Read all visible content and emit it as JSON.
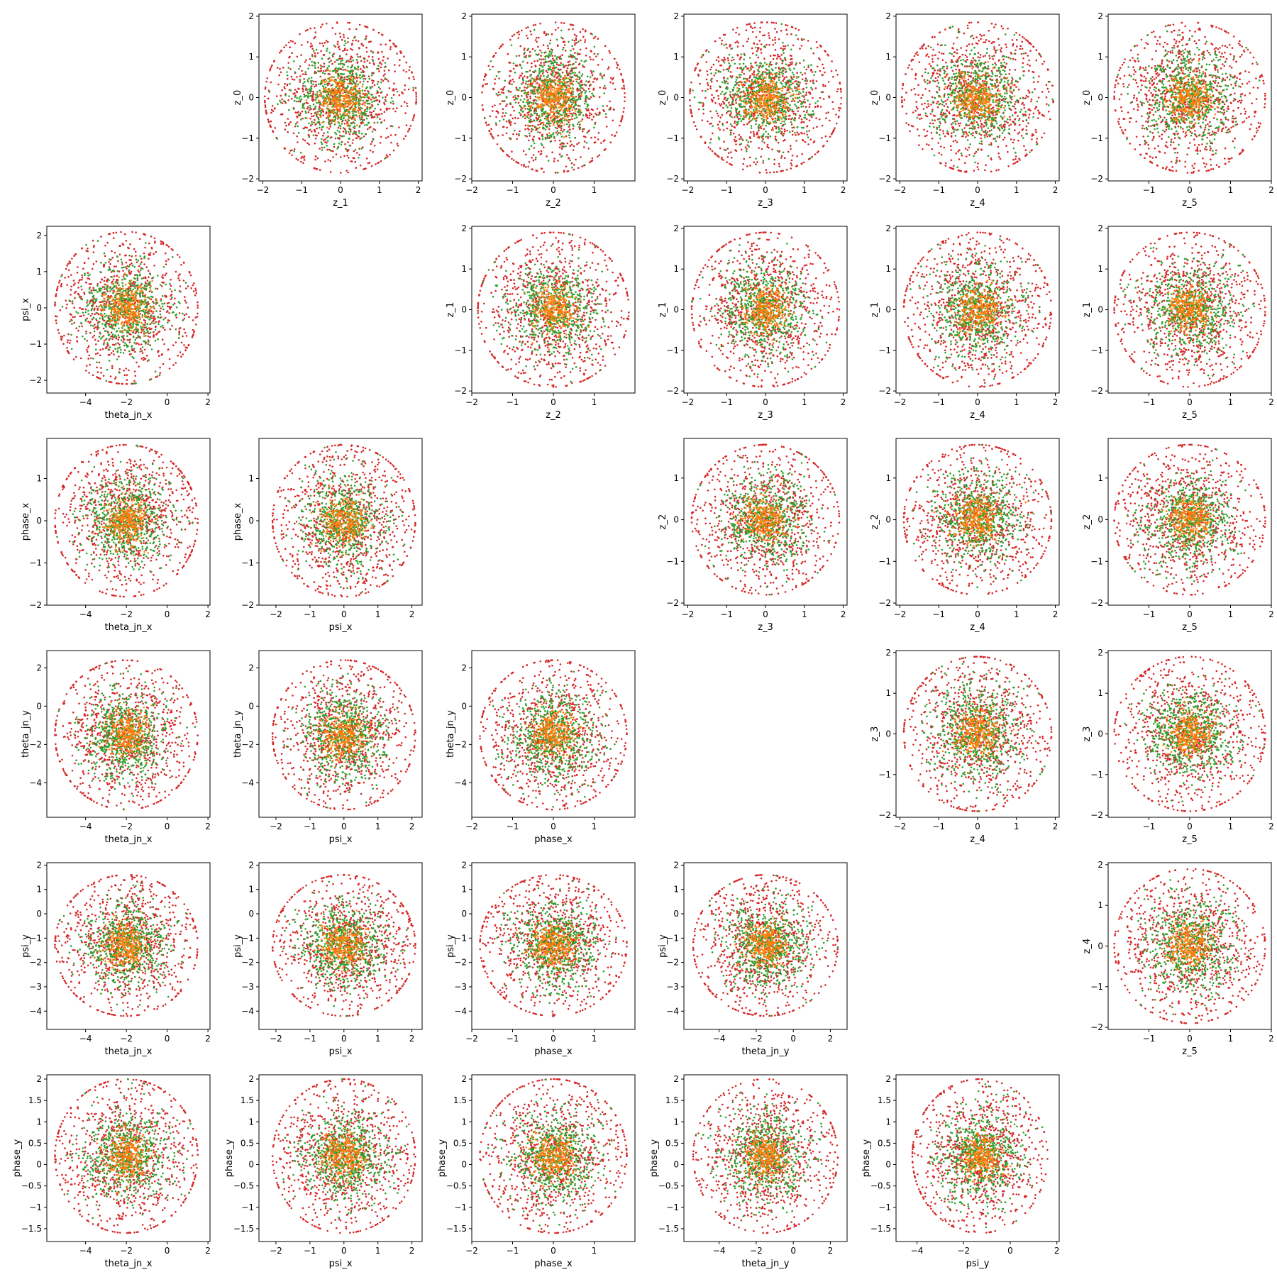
{
  "figure": {
    "type": "pairwise scatter matrix",
    "colors": {
      "outer": "#d62728",
      "middle": "#2ca02c",
      "inner": "#ff7f0e"
    },
    "points_per_series": {
      "outer": 900,
      "middle": 600,
      "inner": 280
    },
    "series_spread": {
      "outer": 0.5,
      "middle": 0.3,
      "inner": 0.15
    }
  },
  "chart_data": [
    {
      "type": "scatter",
      "grid": false,
      "row": 0,
      "col": 1,
      "xlabel": "z_1",
      "ylabel": "z_0",
      "xcenter": 0,
      "ycenter": 0,
      "xspan": 1.95,
      "yspan": 1.85,
      "xlim": [
        -2.1,
        2.1
      ],
      "ylim": [
        -2.05,
        2.05
      ],
      "xticks": [
        -2,
        -1,
        0,
        1,
        2
      ],
      "yticks": [
        -2,
        -1,
        0,
        1,
        2
      ]
    },
    {
      "type": "scatter",
      "grid": false,
      "row": 0,
      "col": 2,
      "xlabel": "z_2",
      "ylabel": "z_0",
      "xcenter": 0,
      "ycenter": 0,
      "xspan": 1.75,
      "yspan": 1.85,
      "xlim": [
        -2.0,
        2.0
      ],
      "ylim": [
        -2.05,
        2.05
      ],
      "xticks": [
        -2,
        -1,
        0,
        1
      ],
      "yticks": [
        -2,
        -1,
        0,
        1,
        2
      ]
    },
    {
      "type": "scatter",
      "grid": false,
      "row": 0,
      "col": 3,
      "xlabel": "z_3",
      "ylabel": "z_0",
      "xcenter": 0,
      "ycenter": 0,
      "xspan": 1.95,
      "yspan": 1.85,
      "xlim": [
        -2.1,
        2.1
      ],
      "ylim": [
        -2.05,
        2.05
      ],
      "xticks": [
        -2,
        -1,
        0,
        1,
        2
      ],
      "yticks": [
        -2,
        -1,
        0,
        1,
        2
      ]
    },
    {
      "type": "scatter",
      "grid": false,
      "row": 0,
      "col": 4,
      "xlabel": "z_4",
      "ylabel": "z_0",
      "xcenter": 0,
      "ycenter": 0,
      "xspan": 1.95,
      "yspan": 1.85,
      "xlim": [
        -2.1,
        2.1
      ],
      "ylim": [
        -2.05,
        2.05
      ],
      "xticks": [
        -2,
        -1,
        0,
        1,
        2
      ],
      "yticks": [
        -2,
        -1,
        0,
        1,
        2
      ]
    },
    {
      "type": "scatter",
      "grid": false,
      "row": 0,
      "col": 5,
      "xlabel": "z_5",
      "ylabel": "z_0",
      "xcenter": 0,
      "ycenter": 0,
      "xspan": 1.85,
      "yspan": 1.85,
      "xlim": [
        -2.0,
        2.0
      ],
      "ylim": [
        -2.05,
        2.05
      ],
      "xticks": [
        -1,
        0,
        1,
        2
      ],
      "yticks": [
        -2,
        -1,
        0,
        1,
        2
      ]
    },
    {
      "type": "scatter",
      "grid": false,
      "row": 1,
      "col": 0,
      "xlabel": "theta_jn_x",
      "ylabel": "psi_x",
      "xcenter": -2,
      "ycenter": 0,
      "xspan": 3.5,
      "yspan": 2.1,
      "xlim": [
        -5.9,
        2.1
      ],
      "ylim": [
        -2.35,
        2.25
      ],
      "xticks": [
        -4,
        -2,
        0,
        2
      ],
      "yticks": [
        -2,
        -1,
        0,
        1,
        2
      ]
    },
    {
      "type": "scatter",
      "grid": false,
      "row": 1,
      "col": 2,
      "xlabel": "z_2",
      "ylabel": "z_1",
      "xcenter": 0,
      "ycenter": 0,
      "xspan": 1.85,
      "yspan": 1.9,
      "xlim": [
        -2.0,
        2.0
      ],
      "ylim": [
        -2.05,
        2.05
      ],
      "xticks": [
        -2,
        -1,
        0,
        1
      ],
      "yticks": [
        -2,
        -1,
        0,
        1,
        2
      ]
    },
    {
      "type": "scatter",
      "grid": false,
      "row": 1,
      "col": 3,
      "xlabel": "z_3",
      "ylabel": "z_1",
      "xcenter": 0,
      "ycenter": 0,
      "xspan": 1.9,
      "yspan": 1.9,
      "xlim": [
        -2.1,
        2.1
      ],
      "ylim": [
        -2.05,
        2.05
      ],
      "xticks": [
        -2,
        -1,
        0,
        1,
        2
      ],
      "yticks": [
        -2,
        -1,
        0,
        1,
        2
      ]
    },
    {
      "type": "scatter",
      "grid": false,
      "row": 1,
      "col": 4,
      "xlabel": "z_4",
      "ylabel": "z_1",
      "xcenter": 0,
      "ycenter": 0,
      "xspan": 1.9,
      "yspan": 1.9,
      "xlim": [
        -2.1,
        2.1
      ],
      "ylim": [
        -2.05,
        2.05
      ],
      "xticks": [
        -2,
        -1,
        0,
        1,
        2
      ],
      "yticks": [
        -2,
        -1,
        0,
        1,
        2
      ]
    },
    {
      "type": "scatter",
      "grid": false,
      "row": 1,
      "col": 5,
      "xlabel": "z_5",
      "ylabel": "z_1",
      "xcenter": 0,
      "ycenter": 0,
      "xspan": 1.85,
      "yspan": 1.9,
      "xlim": [
        -2.0,
        2.0
      ],
      "ylim": [
        -2.05,
        2.05
      ],
      "xticks": [
        -1,
        0,
        1,
        2
      ],
      "yticks": [
        -2,
        -1,
        0,
        1,
        2
      ]
    },
    {
      "type": "scatter",
      "grid": false,
      "row": 2,
      "col": 0,
      "xlabel": "theta_jn_x",
      "ylabel": "phase_x",
      "xcenter": -2,
      "ycenter": 0,
      "xspan": 3.5,
      "yspan": 1.8,
      "xlim": [
        -5.9,
        2.1
      ],
      "ylim": [
        -2.0,
        1.95
      ],
      "xticks": [
        -4,
        -2,
        0,
        2
      ],
      "yticks": [
        -2,
        -1,
        0,
        1
      ]
    },
    {
      "type": "scatter",
      "grid": false,
      "row": 2,
      "col": 1,
      "xlabel": "psi_x",
      "ylabel": "phase_x",
      "xcenter": 0,
      "ycenter": 0,
      "xspan": 2.1,
      "yspan": 1.8,
      "xlim": [
        -2.5,
        2.3
      ],
      "ylim": [
        -2.0,
        1.95
      ],
      "xticks": [
        -2,
        -1,
        0,
        1,
        2
      ],
      "yticks": [
        -2,
        -1,
        0,
        1
      ]
    },
    {
      "type": "scatter",
      "grid": false,
      "row": 2,
      "col": 3,
      "xlabel": "z_3",
      "ylabel": "z_2",
      "xcenter": 0,
      "ycenter": 0,
      "xspan": 1.9,
      "yspan": 1.8,
      "xlim": [
        -2.1,
        2.1
      ],
      "ylim": [
        -2.05,
        1.95
      ],
      "xticks": [
        -2,
        -1,
        0,
        1,
        2
      ],
      "yticks": [
        -2,
        -1,
        0,
        1
      ]
    },
    {
      "type": "scatter",
      "grid": false,
      "row": 2,
      "col": 4,
      "xlabel": "z_4",
      "ylabel": "z_2",
      "xcenter": 0,
      "ycenter": 0,
      "xspan": 1.9,
      "yspan": 1.8,
      "xlim": [
        -2.1,
        2.1
      ],
      "ylim": [
        -2.05,
        1.95
      ],
      "xticks": [
        -2,
        -1,
        0,
        1,
        2
      ],
      "yticks": [
        -2,
        -1,
        0,
        1
      ]
    },
    {
      "type": "scatter",
      "grid": false,
      "row": 2,
      "col": 5,
      "xlabel": "z_5",
      "ylabel": "z_2",
      "xcenter": 0,
      "ycenter": 0,
      "xspan": 1.85,
      "yspan": 1.8,
      "xlim": [
        -2.0,
        2.0
      ],
      "ylim": [
        -2.05,
        1.95
      ],
      "xticks": [
        -1,
        0,
        1,
        2
      ],
      "yticks": [
        -2,
        -1,
        0,
        1
      ]
    },
    {
      "type": "scatter",
      "grid": false,
      "row": 3,
      "col": 0,
      "xlabel": "theta_jn_x",
      "ylabel": "theta_jn_y",
      "xcenter": -2,
      "ycenter": -1.5,
      "xspan": 3.5,
      "yspan": 3.9,
      "xlim": [
        -5.9,
        2.1
      ],
      "ylim": [
        -5.8,
        2.9
      ],
      "xticks": [
        -4,
        -2,
        0,
        2
      ],
      "yticks": [
        -4,
        -2,
        0,
        2
      ]
    },
    {
      "type": "scatter",
      "grid": false,
      "row": 3,
      "col": 1,
      "xlabel": "psi_x",
      "ylabel": "theta_jn_y",
      "xcenter": 0,
      "ycenter": -1.5,
      "xspan": 2.1,
      "yspan": 3.9,
      "xlim": [
        -2.5,
        2.3
      ],
      "ylim": [
        -5.8,
        2.9
      ],
      "xticks": [
        -2,
        -1,
        0,
        1,
        2
      ],
      "yticks": [
        -4,
        -2,
        0,
        2
      ]
    },
    {
      "type": "scatter",
      "grid": false,
      "row": 3,
      "col": 2,
      "xlabel": "phase_x",
      "ylabel": "theta_jn_y",
      "xcenter": 0,
      "ycenter": -1.5,
      "xspan": 1.8,
      "yspan": 3.9,
      "xlim": [
        -2.0,
        2.0
      ],
      "ylim": [
        -5.8,
        2.9
      ],
      "xticks": [
        -2,
        -1,
        0,
        1
      ],
      "yticks": [
        -4,
        -2,
        0,
        2
      ]
    },
    {
      "type": "scatter",
      "grid": false,
      "row": 3,
      "col": 4,
      "xlabel": "z_4",
      "ylabel": "z_3",
      "xcenter": 0,
      "ycenter": 0,
      "xspan": 1.9,
      "yspan": 1.9,
      "xlim": [
        -2.1,
        2.1
      ],
      "ylim": [
        -2.05,
        2.05
      ],
      "xticks": [
        -2,
        -1,
        0,
        1,
        2
      ],
      "yticks": [
        -2,
        -1,
        0,
        1,
        2
      ]
    },
    {
      "type": "scatter",
      "grid": false,
      "row": 3,
      "col": 5,
      "xlabel": "z_5",
      "ylabel": "z_3",
      "xcenter": 0,
      "ycenter": 0,
      "xspan": 1.85,
      "yspan": 1.9,
      "xlim": [
        -2.0,
        2.0
      ],
      "ylim": [
        -2.05,
        2.05
      ],
      "xticks": [
        -1,
        0,
        1,
        2
      ],
      "yticks": [
        -2,
        -1,
        0,
        1,
        2
      ]
    },
    {
      "type": "scatter",
      "grid": false,
      "row": 4,
      "col": 0,
      "xlabel": "theta_jn_x",
      "ylabel": "psi_y",
      "xcenter": -2,
      "ycenter": -1.3,
      "xspan": 3.5,
      "yspan": 2.9,
      "xlim": [
        -5.9,
        2.1
      ],
      "ylim": [
        -4.75,
        2.1
      ],
      "xticks": [
        -4,
        -2,
        0,
        2
      ],
      "yticks": [
        -4,
        -3,
        -2,
        -1,
        0,
        1,
        2
      ]
    },
    {
      "type": "scatter",
      "grid": false,
      "row": 4,
      "col": 1,
      "xlabel": "psi_x",
      "ylabel": "psi_y",
      "xcenter": 0,
      "ycenter": -1.3,
      "xspan": 2.1,
      "yspan": 2.9,
      "xlim": [
        -2.5,
        2.3
      ],
      "ylim": [
        -4.75,
        2.1
      ],
      "xticks": [
        -2,
        -1,
        0,
        1,
        2
      ],
      "yticks": [
        -4,
        -3,
        -2,
        -1,
        0,
        1,
        2
      ]
    },
    {
      "type": "scatter",
      "grid": false,
      "row": 4,
      "col": 2,
      "xlabel": "phase_x",
      "ylabel": "psi_y",
      "xcenter": 0,
      "ycenter": -1.3,
      "xspan": 1.8,
      "yspan": 2.9,
      "xlim": [
        -2.0,
        2.0
      ],
      "ylim": [
        -4.75,
        2.1
      ],
      "xticks": [
        -2,
        -1,
        0,
        1
      ],
      "yticks": [
        -4,
        -3,
        -2,
        -1,
        0,
        1,
        2
      ]
    },
    {
      "type": "scatter",
      "grid": false,
      "row": 4,
      "col": 3,
      "xlabel": "theta_jn_y",
      "ylabel": "psi_y",
      "xcenter": -1.5,
      "ycenter": -1.3,
      "xspan": 3.9,
      "yspan": 2.9,
      "xlim": [
        -5.9,
        2.9
      ],
      "ylim": [
        -4.75,
        2.1
      ],
      "xticks": [
        -4,
        -2,
        0,
        2
      ],
      "yticks": [
        -4,
        -3,
        -2,
        -1,
        0,
        1,
        2
      ]
    },
    {
      "type": "scatter",
      "grid": false,
      "row": 4,
      "col": 5,
      "xlabel": "z_5",
      "ylabel": "z_4",
      "xcenter": 0,
      "ycenter": 0,
      "xspan": 1.85,
      "yspan": 1.9,
      "xlim": [
        -2.0,
        2.0
      ],
      "ylim": [
        -2.05,
        2.05
      ],
      "xticks": [
        -1,
        0,
        1,
        2
      ],
      "yticks": [
        -2,
        -1,
        0,
        1,
        2
      ]
    },
    {
      "type": "scatter",
      "grid": false,
      "row": 5,
      "col": 0,
      "xlabel": "theta_jn_x",
      "ylabel": "phase_y",
      "xcenter": -2,
      "ycenter": 0.2,
      "xspan": 3.5,
      "yspan": 1.8,
      "xlim": [
        -5.9,
        2.1
      ],
      "ylim": [
        -1.8,
        2.1
      ],
      "xticks": [
        -4,
        -2,
        0,
        2
      ],
      "yticks": [
        -1.5,
        -1.0,
        -0.5,
        0.0,
        0.5,
        1.0,
        1.5,
        2.0
      ]
    },
    {
      "type": "scatter",
      "grid": false,
      "row": 5,
      "col": 1,
      "xlabel": "psi_x",
      "ylabel": "phase_y",
      "xcenter": 0,
      "ycenter": 0.2,
      "xspan": 2.1,
      "yspan": 1.8,
      "xlim": [
        -2.5,
        2.3
      ],
      "ylim": [
        -1.8,
        2.1
      ],
      "xticks": [
        -2,
        -1,
        0,
        1,
        2
      ],
      "yticks": [
        -1.5,
        -1.0,
        -0.5,
        0.0,
        0.5,
        1.0,
        1.5,
        2.0
      ]
    },
    {
      "type": "scatter",
      "grid": false,
      "row": 5,
      "col": 2,
      "xlabel": "phase_x",
      "ylabel": "phase_y",
      "xcenter": 0,
      "ycenter": 0.2,
      "xspan": 1.8,
      "yspan": 1.8,
      "xlim": [
        -2.0,
        2.0
      ],
      "ylim": [
        -1.8,
        2.1
      ],
      "xticks": [
        -2,
        -1,
        0,
        1
      ],
      "yticks": [
        -1.5,
        -1.0,
        -0.5,
        0.0,
        0.5,
        1.0,
        1.5,
        2.0
      ]
    },
    {
      "type": "scatter",
      "grid": false,
      "row": 5,
      "col": 3,
      "xlabel": "theta_jn_y",
      "ylabel": "phase_y",
      "xcenter": -1.5,
      "ycenter": 0.2,
      "xspan": 3.9,
      "yspan": 1.8,
      "xlim": [
        -5.9,
        2.9
      ],
      "ylim": [
        -1.8,
        2.1
      ],
      "xticks": [
        -4,
        -2,
        0,
        2
      ],
      "yticks": [
        -1.5,
        -1.0,
        -0.5,
        0.0,
        0.5,
        1.0,
        1.5,
        2.0
      ]
    },
    {
      "type": "scatter",
      "grid": false,
      "row": 5,
      "col": 4,
      "xlabel": "psi_y",
      "ylabel": "phase_y",
      "xcenter": -1.3,
      "ycenter": 0.2,
      "xspan": 2.9,
      "yspan": 1.8,
      "xlim": [
        -4.9,
        2.1
      ],
      "ylim": [
        -1.8,
        2.1
      ],
      "xticks": [
        -4,
        -2,
        0,
        2
      ],
      "yticks": [
        -1.5,
        -1.0,
        -0.5,
        0.0,
        0.5,
        1.0,
        1.5,
        2.0
      ]
    }
  ]
}
